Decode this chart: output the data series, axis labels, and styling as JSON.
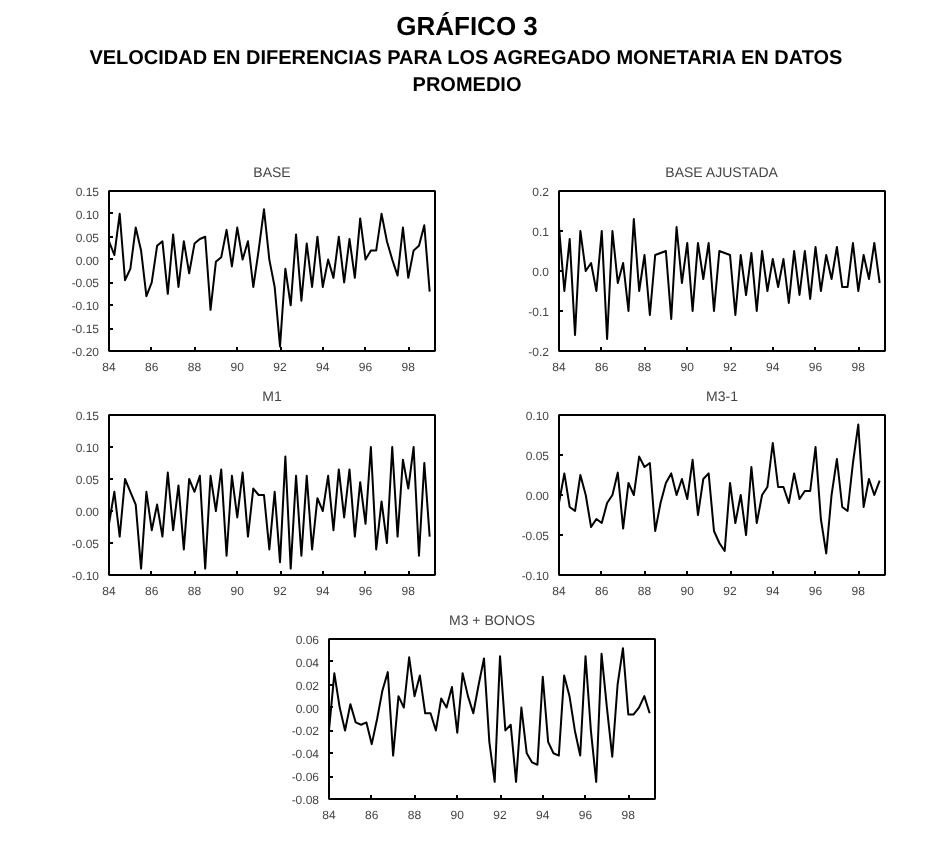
{
  "chart_data": [
    {
      "type": "other",
      "title": "GRÁFICO 3",
      "subtitle": "VELOCIDAD EN DIFERENCIAS PARA LOS AGREGADO MONETARIA EN DATOS PROMEDIO"
    },
    {
      "type": "line",
      "title": "BASE",
      "xlim": [
        84,
        99.25
      ],
      "xticks": [
        84,
        86,
        88,
        90,
        92,
        94,
        96,
        98
      ],
      "ylim": [
        -0.2,
        0.15
      ],
      "yticks": [
        {
          "value": -0.2,
          "label": "-0.20"
        },
        {
          "value": -0.15,
          "label": "-0.15"
        },
        {
          "value": -0.1,
          "label": "-0.10"
        },
        {
          "value": -0.05,
          "label": "-0.05"
        },
        {
          "value": 0,
          "label": "0.00"
        },
        {
          "value": 0.05,
          "label": "0.05"
        },
        {
          "value": 0.1,
          "label": "0.10"
        },
        {
          "value": 0.15,
          "label": "0.15"
        }
      ],
      "grid": false,
      "series": [
        {
          "color": "#000000",
          "x": [
            84,
            84.25,
            84.5,
            84.75,
            85,
            85.25,
            85.5,
            85.75,
            86,
            86.25,
            86.5,
            86.75,
            87,
            87.25,
            87.5,
            87.75,
            88,
            88.25,
            88.5,
            88.75,
            89,
            89.25,
            89.5,
            89.75,
            90,
            90.25,
            90.5,
            90.75,
            91,
            91.25,
            91.5,
            91.75,
            92,
            92.25,
            92.5,
            92.75,
            93,
            93.25,
            93.5,
            93.75,
            94,
            94.25,
            94.5,
            94.75,
            95,
            95.25,
            95.5,
            95.75,
            96,
            96.25,
            96.5,
            96.75,
            97,
            97.25,
            97.5,
            97.75,
            98,
            98.25,
            98.5,
            98.75,
            99
          ],
          "values": [
            0.04,
            0.01,
            0.1,
            -0.045,
            -0.02,
            0.07,
            0.02,
            -0.08,
            -0.05,
            0.03,
            0.04,
            -0.075,
            0.055,
            -0.06,
            0.04,
            -0.03,
            0.035,
            0.045,
            0.05,
            -0.11,
            -0.005,
            0.005,
            0.065,
            -0.015,
            0.07,
            0.0,
            0.04,
            -0.06,
            0.02,
            0.11,
            0.0,
            -0.06,
            -0.19,
            -0.02,
            -0.1,
            0.055,
            -0.09,
            0.035,
            -0.06,
            0.05,
            -0.06,
            0.0,
            -0.04,
            0.05,
            -0.05,
            0.045,
            -0.04,
            0.09,
            0.0,
            0.02,
            0.02,
            0.1,
            0.04,
            0.0,
            -0.035,
            0.07,
            -0.04,
            0.02,
            0.03,
            0.075,
            -0.07
          ]
        }
      ]
    },
    {
      "type": "line",
      "title": "BASE AJUSTADA",
      "xlim": [
        84,
        99.25
      ],
      "xticks": [
        84,
        86,
        88,
        90,
        92,
        94,
        96,
        98
      ],
      "ylim": [
        -0.2,
        0.2
      ],
      "yticks": [
        {
          "value": -0.2,
          "label": "-0.2"
        },
        {
          "value": -0.1,
          "label": "-0.1"
        },
        {
          "value": 0,
          "label": "0.0"
        },
        {
          "value": 0.1,
          "label": "0.1"
        },
        {
          "value": 0.2,
          "label": "0.2"
        }
      ],
      "grid": false,
      "series": [
        {
          "color": "#000000",
          "x": [
            84,
            84.25,
            84.5,
            84.75,
            85,
            85.25,
            85.5,
            85.75,
            86,
            86.25,
            86.5,
            86.75,
            87,
            87.25,
            87.5,
            87.75,
            88,
            88.25,
            88.5,
            88.75,
            89,
            89.25,
            89.5,
            89.75,
            90,
            90.25,
            90.5,
            90.75,
            91,
            91.25,
            91.5,
            91.75,
            92,
            92.25,
            92.5,
            92.75,
            93,
            93.25,
            93.5,
            93.75,
            94,
            94.25,
            94.5,
            94.75,
            95,
            95.25,
            95.5,
            95.75,
            96,
            96.25,
            96.5,
            96.75,
            97,
            97.25,
            97.5,
            97.75,
            98,
            98.25,
            98.5,
            98.75,
            99
          ],
          "values": [
            0.11,
            -0.05,
            0.08,
            -0.16,
            0.1,
            0.0,
            0.02,
            -0.05,
            0.1,
            -0.17,
            0.1,
            -0.03,
            0.02,
            -0.1,
            0.13,
            -0.05,
            0.04,
            -0.11,
            0.04,
            0.045,
            0.05,
            -0.12,
            0.11,
            -0.03,
            0.07,
            -0.1,
            0.07,
            -0.02,
            0.07,
            -0.1,
            0.05,
            0.045,
            0.04,
            -0.11,
            0.04,
            -0.06,
            0.045,
            -0.1,
            0.05,
            -0.05,
            0.03,
            -0.04,
            0.03,
            -0.08,
            0.05,
            -0.06,
            0.05,
            -0.07,
            0.06,
            -0.05,
            0.04,
            -0.02,
            0.06,
            -0.04,
            -0.04,
            0.07,
            -0.05,
            0.04,
            -0.02,
            0.07,
            -0.03
          ]
        }
      ]
    },
    {
      "type": "line",
      "title": "M1",
      "xlim": [
        84,
        99.25
      ],
      "xticks": [
        84,
        86,
        88,
        90,
        92,
        94,
        96,
        98
      ],
      "ylim": [
        -0.1,
        0.15
      ],
      "yticks": [
        {
          "value": -0.1,
          "label": "-0.10"
        },
        {
          "value": -0.05,
          "label": "-0.05"
        },
        {
          "value": 0,
          "label": "0.00"
        },
        {
          "value": 0.05,
          "label": "0.05"
        },
        {
          "value": 0.1,
          "label": "0.10"
        },
        {
          "value": 0.15,
          "label": "0.15"
        }
      ],
      "grid": false,
      "series": [
        {
          "color": "#000000",
          "x": [
            84,
            84.25,
            84.5,
            84.75,
            85,
            85.25,
            85.5,
            85.75,
            86,
            86.25,
            86.5,
            86.75,
            87,
            87.25,
            87.5,
            87.75,
            88,
            88.25,
            88.5,
            88.75,
            89,
            89.25,
            89.5,
            89.75,
            90,
            90.25,
            90.5,
            90.75,
            91,
            91.25,
            91.5,
            91.75,
            92,
            92.25,
            92.5,
            92.75,
            93,
            93.25,
            93.5,
            93.75,
            94,
            94.25,
            94.5,
            94.75,
            95,
            95.25,
            95.5,
            95.75,
            96,
            96.25,
            96.5,
            96.75,
            97,
            97.25,
            97.5,
            97.75,
            98,
            98.25,
            98.5,
            98.75,
            99
          ],
          "values": [
            -0.02,
            0.03,
            -0.04,
            0.05,
            0.03,
            0.01,
            -0.09,
            0.03,
            -0.03,
            0.01,
            -0.04,
            0.06,
            -0.03,
            0.04,
            -0.06,
            0.05,
            0.03,
            0.055,
            -0.09,
            0.055,
            0.0,
            0.065,
            -0.07,
            0.055,
            -0.01,
            0.06,
            -0.04,
            0.035,
            0.025,
            0.025,
            -0.06,
            0.03,
            -0.08,
            0.085,
            -0.09,
            0.055,
            -0.07,
            0.055,
            -0.06,
            0.02,
            0.0,
            0.055,
            -0.03,
            0.065,
            -0.01,
            0.065,
            -0.04,
            0.045,
            -0.02,
            0.1,
            -0.06,
            0.015,
            -0.05,
            0.1,
            -0.04,
            0.08,
            0.035,
            0.1,
            -0.07,
            0.075,
            -0.04
          ]
        }
      ]
    },
    {
      "type": "line",
      "title": "M3-1",
      "xlim": [
        84,
        99.25
      ],
      "xticks": [
        84,
        86,
        88,
        90,
        92,
        94,
        96,
        98
      ],
      "ylim": [
        -0.1,
        0.1
      ],
      "yticks": [
        {
          "value": -0.1,
          "label": "-0.10"
        },
        {
          "value": -0.05,
          "label": "-0.05"
        },
        {
          "value": 0,
          "label": "0.00"
        },
        {
          "value": 0.05,
          "label": "0.05"
        },
        {
          "value": 0.1,
          "label": "0.10"
        }
      ],
      "grid": false,
      "series": [
        {
          "color": "#000000",
          "x": [
            84,
            84.25,
            84.5,
            84.75,
            85,
            85.25,
            85.5,
            85.75,
            86,
            86.25,
            86.5,
            86.75,
            87,
            87.25,
            87.5,
            87.75,
            88,
            88.25,
            88.5,
            88.75,
            89,
            89.25,
            89.5,
            89.75,
            90,
            90.25,
            90.5,
            90.75,
            91,
            91.25,
            91.5,
            91.75,
            92,
            92.25,
            92.5,
            92.75,
            93,
            93.25,
            93.5,
            93.75,
            94,
            94.25,
            94.5,
            94.75,
            95,
            95.25,
            95.5,
            95.75,
            96,
            96.25,
            96.5,
            96.75,
            97,
            97.25,
            97.5,
            97.75,
            98,
            98.25,
            98.5,
            98.75,
            99
          ],
          "values": [
            -0.01,
            0.027,
            -0.015,
            -0.02,
            0.025,
            0.0,
            -0.04,
            -0.03,
            -0.035,
            -0.01,
            0.0,
            0.028,
            -0.042,
            0.015,
            0.0,
            0.048,
            0.035,
            0.04,
            -0.045,
            -0.01,
            0.015,
            0.027,
            0.0,
            0.02,
            -0.005,
            0.044,
            -0.025,
            0.02,
            0.027,
            -0.045,
            -0.06,
            -0.07,
            0.015,
            -0.035,
            0.0,
            -0.05,
            0.035,
            -0.035,
            0.0,
            0.01,
            0.065,
            0.01,
            0.01,
            -0.01,
            0.027,
            -0.005,
            0.005,
            0.005,
            0.06,
            -0.03,
            -0.073,
            0.0,
            0.045,
            -0.015,
            -0.02,
            0.04,
            0.088,
            -0.015,
            0.02,
            0.0,
            0.018
          ]
        }
      ]
    },
    {
      "type": "line",
      "title": "M3 + BONOS",
      "xlim": [
        84,
        99.25
      ],
      "xticks": [
        84,
        86,
        88,
        90,
        92,
        94,
        96,
        98
      ],
      "ylim": [
        -0.08,
        0.06
      ],
      "yticks": [
        {
          "value": -0.08,
          "label": "-0.08"
        },
        {
          "value": -0.06,
          "label": "-0.06"
        },
        {
          "value": -0.04,
          "label": "-0.04"
        },
        {
          "value": -0.02,
          "label": "-0.02"
        },
        {
          "value": 0,
          "label": "0.00"
        },
        {
          "value": 0.02,
          "label": "0.02"
        },
        {
          "value": 0.04,
          "label": "0.04"
        },
        {
          "value": 0.06,
          "label": "0.06"
        }
      ],
      "grid": false,
      "series": [
        {
          "color": "#000000",
          "x": [
            84,
            84.25,
            84.5,
            84.75,
            85,
            85.25,
            85.5,
            85.75,
            86,
            86.25,
            86.5,
            86.75,
            87,
            87.25,
            87.5,
            87.75,
            88,
            88.25,
            88.5,
            88.75,
            89,
            89.25,
            89.5,
            89.75,
            90,
            90.25,
            90.5,
            90.75,
            91,
            91.25,
            91.5,
            91.75,
            92,
            92.25,
            92.5,
            92.75,
            93,
            93.25,
            93.5,
            93.75,
            94,
            94.25,
            94.5,
            94.75,
            95,
            95.25,
            95.5,
            95.75,
            96,
            96.25,
            96.5,
            96.75,
            97,
            97.25,
            97.5,
            97.75,
            98,
            98.25,
            98.5,
            98.75,
            99
          ],
          "values": [
            -0.02,
            0.03,
            0.0,
            -0.02,
            0.003,
            -0.013,
            -0.015,
            -0.013,
            -0.032,
            -0.01,
            0.015,
            0.031,
            -0.042,
            0.01,
            0.0,
            0.044,
            0.01,
            0.028,
            -0.005,
            -0.005,
            -0.02,
            0.008,
            0.0,
            0.018,
            -0.022,
            0.03,
            0.01,
            -0.005,
            0.02,
            0.043,
            -0.03,
            -0.065,
            0.045,
            -0.02,
            -0.015,
            -0.065,
            0.0,
            -0.04,
            -0.048,
            -0.05,
            0.027,
            -0.03,
            -0.04,
            -0.042,
            0.028,
            0.01,
            -0.02,
            -0.042,
            0.045,
            -0.02,
            -0.065,
            0.047,
            0.0,
            -0.043,
            0.02,
            0.052,
            -0.006,
            -0.006,
            0.0,
            0.01,
            -0.005
          ]
        }
      ]
    }
  ]
}
